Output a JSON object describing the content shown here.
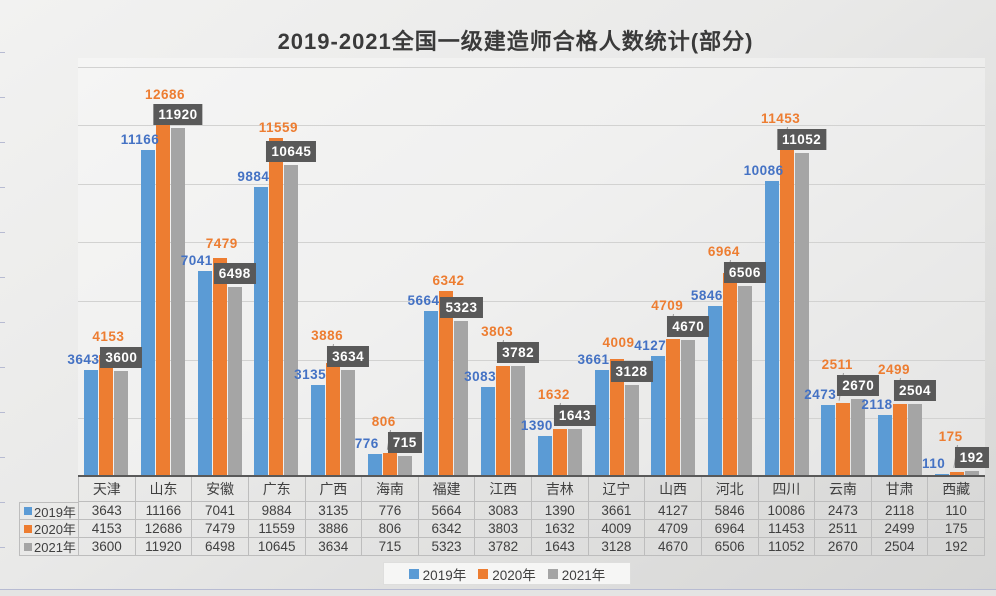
{
  "chart_data": {
    "type": "bar",
    "title": "2019-2021全国一级建造师合格人数统计(部分)",
    "categories": [
      "天津",
      "山东",
      "安徽",
      "广东",
      "广西",
      "海南",
      "福建",
      "江西",
      "吉林",
      "辽宁",
      "山西",
      "河北",
      "四川",
      "云南",
      "甘肃",
      "西藏"
    ],
    "series": [
      {
        "name": "2019年",
        "color": "#5B9BD5",
        "label_color": "#4472C4",
        "values": [
          3643,
          11166,
          7041,
          9884,
          3135,
          776,
          5664,
          3083,
          1390,
          3661,
          4127,
          5846,
          10086,
          2473,
          2118,
          110
        ]
      },
      {
        "name": "2020年",
        "color": "#ED7D31",
        "label_color": "#ED7D31",
        "values": [
          4153,
          12686,
          7479,
          11559,
          3886,
          806,
          6342,
          3803,
          1632,
          4009,
          4709,
          6964,
          11453,
          2511,
          2499,
          175
        ]
      },
      {
        "name": "2021年",
        "color": "#A5A5A5",
        "label_style": "boxed",
        "box_bg": "#595959",
        "box_text": "#FFFFFF",
        "values": [
          3600,
          11920,
          6498,
          10645,
          3634,
          715,
          5323,
          3782,
          1643,
          3128,
          4670,
          6506,
          11052,
          2670,
          2504,
          192
        ]
      }
    ],
    "xlabel": "",
    "ylabel": "",
    "ylim": [
      0,
      14000
    ],
    "grid_interval": 2000,
    "grid": "horizontal, y-axis labels hidden",
    "legend_position": "bottom",
    "data_table": true
  },
  "legend": {
    "items": [
      {
        "label": "2019年",
        "color": "#5B9BD5"
      },
      {
        "label": "2020年",
        "color": "#ED7D31"
      },
      {
        "label": "2021年",
        "color": "#A5A5A5"
      }
    ]
  },
  "colors": {
    "background_top": "#F2F2F1",
    "background_bottom": "#D6D6D5",
    "gridline": "#D2D2D1",
    "axis_line": "#595959",
    "table_border": "#BDBDBD",
    "table_text": "#404040",
    "title_text": "#3A3A3A",
    "leader_line": "#9A9A9A"
  }
}
